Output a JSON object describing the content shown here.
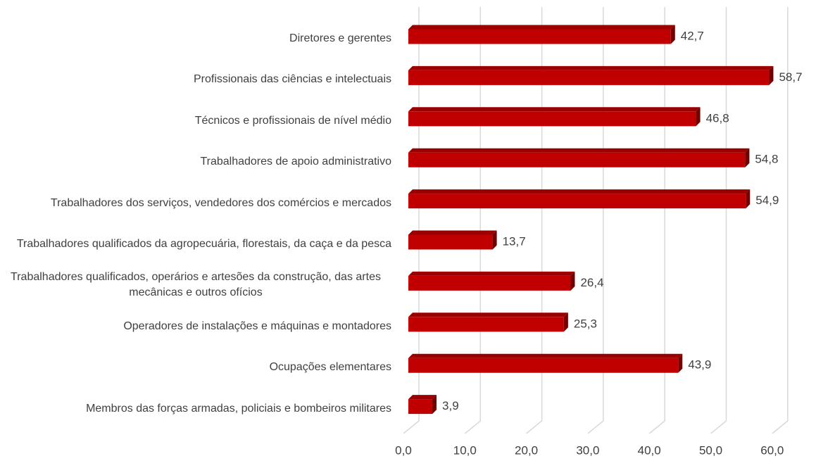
{
  "chart_data": {
    "type": "bar",
    "orientation": "horizontal",
    "categories": [
      "Diretores e gerentes",
      "Profissionais das ciências e intelectuais",
      "Técnicos e profissionais de nível médio",
      "Trabalhadores de apoio administrativo",
      "Trabalhadores dos serviços, vendedores dos comércios e mercados",
      "Trabalhadores qualificados da agropecuária, florestais, da caça e da pesca",
      "Trabalhadores qualificados, operários e artesões da construção, das artes mecânicas e outros ofícios",
      "Operadores de instalações e máquinas e montadores",
      "Ocupações elementares",
      "Membros das forças armadas, policiais e bombeiros militares"
    ],
    "values": [
      42.7,
      58.7,
      46.8,
      54.8,
      54.9,
      13.7,
      26.4,
      25.3,
      43.9,
      3.9
    ],
    "value_labels": [
      "42,7",
      "58,7",
      "46,8",
      "54,8",
      "54,9",
      "13,7",
      "26,4",
      "25,3",
      "43,9",
      "3,9"
    ],
    "color": "#c00000",
    "xlim": [
      0,
      60
    ],
    "xticks": [
      {
        "value": 0,
        "label": "0,0"
      },
      {
        "value": 10,
        "label": "10,0"
      },
      {
        "value": 20,
        "label": "20,0"
      },
      {
        "value": 30,
        "label": "30,0"
      },
      {
        "value": 40,
        "label": "40,0"
      },
      {
        "value": 50,
        "label": "50,0"
      },
      {
        "value": 60,
        "label": "60,0"
      }
    ],
    "grid": true
  }
}
